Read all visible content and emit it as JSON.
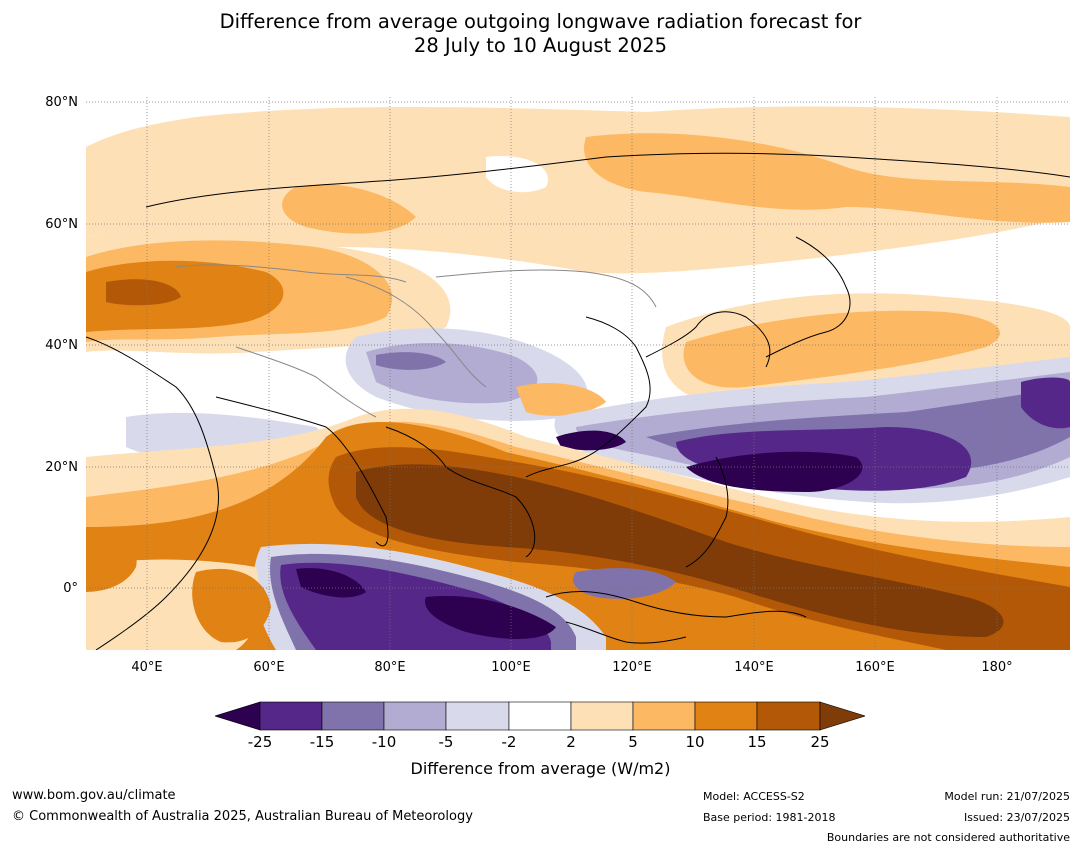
{
  "title_line1": "Difference from average outgoing longwave radiation forecast for",
  "title_line2": "28 July to 10 August 2025",
  "lat_labels": [
    "80°N",
    "60°N",
    "40°N",
    "20°N",
    "0°"
  ],
  "lon_labels": [
    "40°E",
    "60°E",
    "80°E",
    "100°E",
    "120°E",
    "140°E",
    "160°E",
    "180°"
  ],
  "colorbar": {
    "ticks": [
      "-25",
      "-15",
      "-10",
      "-5",
      "-2",
      "2",
      "5",
      "10",
      "15",
      "25"
    ],
    "colors": [
      "#2d0050",
      "#542788",
      "#8073ac",
      "#b2abd2",
      "#d8daeb",
      "#ffffff",
      "#fee0b6",
      "#fdb863",
      "#e08214",
      "#b35806",
      "#7f3b08"
    ],
    "label": "Difference from average (W/m2)"
  },
  "footer": {
    "url": "www.bom.gov.au/climate",
    "copyright": "© Commonwealth of Australia 2025, Australian Bureau of Meteorology",
    "model": "Model: ACCESS-S2",
    "base_period": "Base period: 1981-2018",
    "model_run": "Model run: 21/07/2025",
    "issued": "Issued: 23/07/2025",
    "disclaimer": "Boundaries are not considered authoritative"
  }
}
